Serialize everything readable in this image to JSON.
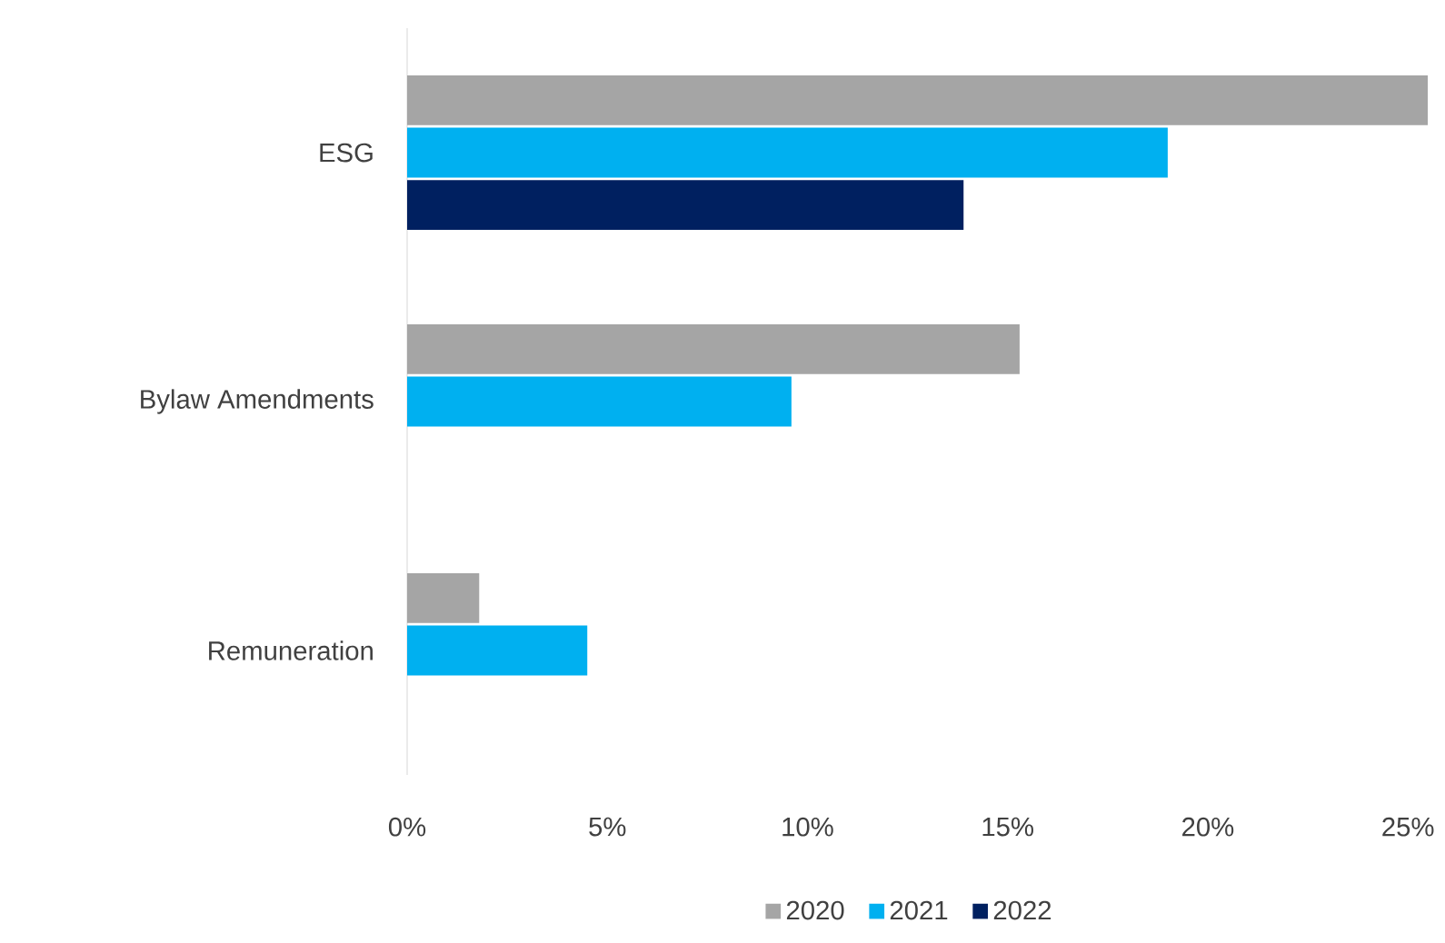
{
  "chart_data": {
    "type": "bar",
    "orientation": "horizontal",
    "categories": [
      "ESG",
      "Bylaw Amendments",
      "Remuneration"
    ],
    "series": [
      {
        "name": "2020",
        "color": "#a5a5a5",
        "values": [
          25.5,
          15.3,
          1.8
        ]
      },
      {
        "name": "2021",
        "color": "#00b0f0",
        "values": [
          19.0,
          9.6,
          4.5
        ]
      },
      {
        "name": "2022",
        "color": "#002060",
        "values": [
          13.9,
          null,
          null
        ]
      }
    ],
    "xlim": [
      0,
      25.7
    ],
    "xticks": [
      {
        "value": 0,
        "label": "0%"
      },
      {
        "value": 5,
        "label": "5%"
      },
      {
        "value": 10,
        "label": "10%"
      },
      {
        "value": 15,
        "label": "15%"
      },
      {
        "value": 20,
        "label": "20%"
      },
      {
        "value": 25,
        "label": "25%"
      }
    ],
    "grid": false,
    "legend": "bottom"
  }
}
